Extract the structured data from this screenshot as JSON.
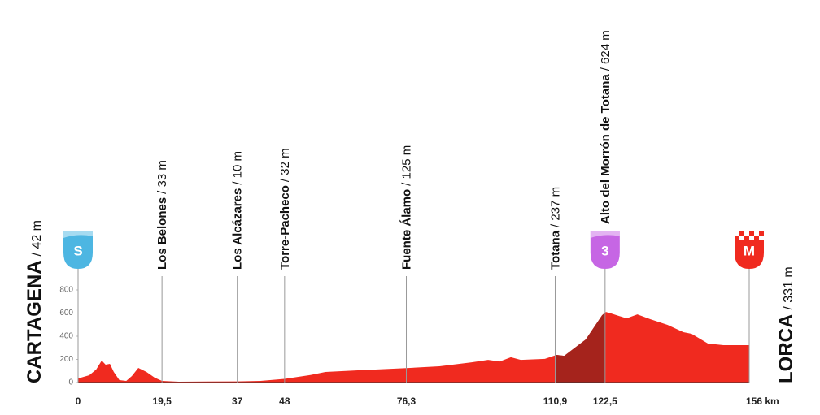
{
  "chart_data": {
    "type": "area",
    "x": [
      0,
      2.6,
      4.2,
      5.5,
      6.4,
      7.4,
      8.3,
      9.6,
      11.2,
      12.5,
      14,
      15.9,
      17.8,
      19.5,
      23.4,
      37,
      42.4,
      48,
      53.7,
      57.5,
      65,
      76.3,
      84,
      91.5,
      95.3,
      98,
      100.6,
      102.9,
      108.5,
      111.2,
      113,
      118,
      121.8,
      122.7,
      124,
      127.5,
      130,
      133,
      137,
      140.7,
      142.6,
      146.4,
      150,
      156
    ],
    "values": [
      35,
      63,
      112,
      190,
      154,
      161,
      91,
      21,
      14,
      56,
      126,
      91,
      42,
      14,
      7,
      10,
      14,
      32,
      63,
      91,
      105,
      125,
      140,
      175,
      196,
      182,
      218,
      196,
      204,
      239,
      231,
      372,
      582,
      610,
      596,
      554,
      589,
      547,
      498,
      435,
      421,
      337,
      323,
      323
    ],
    "color": "#f02a1f",
    "climb_color": "#a5231c",
    "xlim": [
      0,
      156
    ],
    "ylim": [
      0,
      800
    ],
    "xticks": [
      0,
      {
        "value": 19.5,
        "label": "19,5"
      },
      37,
      48,
      {
        "value": 76.3,
        "label": "76,3"
      },
      {
        "value": 110.9,
        "label": "110,9"
      },
      {
        "value": 122.5,
        "label": "122,5"
      },
      {
        "value": 156,
        "label": "156 km"
      }
    ],
    "yticks": [
      0,
      200,
      400,
      600,
      800
    ],
    "start": {
      "name": "CARTAGENA",
      "label": "/ 42 m",
      "icon": "S",
      "color": "#4db6e2"
    },
    "finish": {
      "name": "LORCA",
      "label": "/ 331 m",
      "icon": "M",
      "color": "#f02a1f"
    },
    "waypoints": [
      {
        "name": "Los Belones",
        "label": "/ 33 m"
      },
      {
        "name": "Los Alcázares",
        "label": "/ 10 m"
      },
      {
        "name": "Torre-Pacheco",
        "label": "/ 32 m"
      },
      {
        "name": "Fuente Álamo",
        "label": "/ 125 m"
      },
      {
        "name": "Totana",
        "label": "/ 237 m"
      },
      {
        "name": "Alto del Morrón de Totana",
        "label": "/ 624 m",
        "icon": "3",
        "color": "#c666e4"
      }
    ]
  }
}
